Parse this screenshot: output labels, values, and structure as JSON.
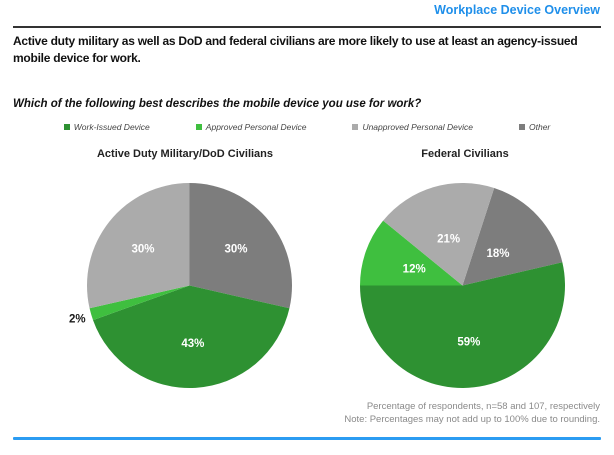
{
  "header": {
    "title": "Workplace Device Overview"
  },
  "headline": "Active duty military as well as DoD and federal civilians are more likely to use at least an agency-issued mobile device for work.",
  "question": "Which of the following best describes the mobile device you use for work?",
  "legend": {
    "items": [
      {
        "label": "Work-Issued Device",
        "color": "#2e9132"
      },
      {
        "label": "Approved Personal Device",
        "color": "#3fbf3f"
      },
      {
        "label": "Unapproved Personal Device",
        "color": "#ababab"
      },
      {
        "label": "Other",
        "color": "#7d7d7d"
      }
    ]
  },
  "colors": {
    "header_text": "#1f8fea",
    "top_rule": "#333333",
    "bottom_rule": "#2b9cf2",
    "work_issued": "#2e9132",
    "approved_personal": "#3fbf3f",
    "unapproved_personal": "#ababab",
    "other": "#7d7d7d",
    "inside_label": "#ffffff",
    "outside_label": "#1a1a1a"
  },
  "chart_data": [
    {
      "type": "pie",
      "title": "Active Duty Military/DoD Civilians",
      "n": 58,
      "start_angle": 0,
      "slices": [
        {
          "label": "Other",
          "value": 30,
          "display": "30%",
          "color": "#7d7d7d",
          "label_r": 0.58
        },
        {
          "label": "Work-Issued Device",
          "value": 43,
          "display": "43%",
          "color": "#2e9132",
          "label_r": 0.56
        },
        {
          "label": "Approved Personal Device",
          "value": 2,
          "display": "2%",
          "color": "#3fbf3f",
          "label_outside": true,
          "label_r": 1.14
        },
        {
          "label": "Unapproved Personal Device",
          "value": 30,
          "display": "30%",
          "color": "#ababab",
          "label_r": 0.58
        }
      ]
    },
    {
      "type": "pie",
      "title": "Federal Civilians",
      "n": 107,
      "start_angle": 18,
      "slices": [
        {
          "label": "Other",
          "value": 18,
          "display": "18%",
          "color": "#7d7d7d",
          "label_r": 0.47
        },
        {
          "label": "Work-Issued Device",
          "value": 59,
          "display": "59%",
          "color": "#2e9132",
          "label_r": 0.55
        },
        {
          "label": "Approved Personal Device",
          "value": 12,
          "display": "12%",
          "color": "#3fbf3f",
          "label_r": 0.5
        },
        {
          "label": "Unapproved Personal Device",
          "value": 21,
          "display": "21%",
          "color": "#ababab",
          "label_r": 0.48
        }
      ]
    }
  ],
  "footnote": {
    "line1": "Percentage of respondents, n=58 and 107, respectively",
    "line2": "Note: Percentages may not add up to 100% due to rounding."
  }
}
